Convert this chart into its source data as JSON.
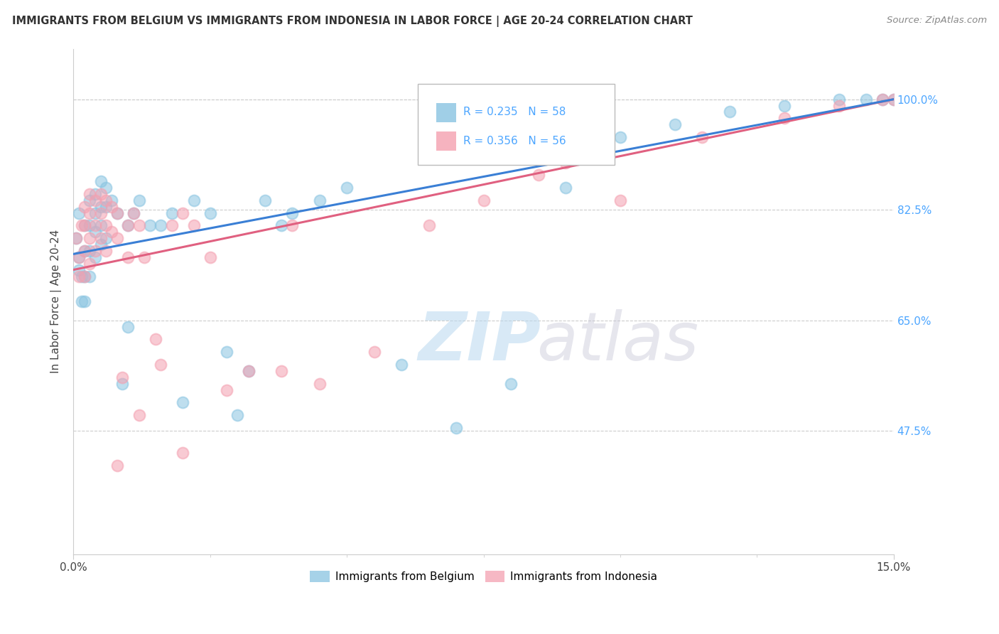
{
  "title": "IMMIGRANTS FROM BELGIUM VS IMMIGRANTS FROM INDONESIA IN LABOR FORCE | AGE 20-24 CORRELATION CHART",
  "source": "Source: ZipAtlas.com",
  "ylabel": "In Labor Force | Age 20-24",
  "xlim": [
    0.0,
    0.15
  ],
  "ylim": [
    0.28,
    1.08
  ],
  "xtick_positions": [
    0.0,
    0.15
  ],
  "xticklabels": [
    "0.0%",
    "15.0%"
  ],
  "ytick_positions": [
    0.475,
    0.65,
    0.825,
    1.0
  ],
  "yticklabels": [
    "47.5%",
    "65.0%",
    "82.5%",
    "100.0%"
  ],
  "legend_labels": [
    "Immigrants from Belgium",
    "Immigrants from Indonesia"
  ],
  "belgium_R": 0.235,
  "belgium_N": 58,
  "indonesia_R": 0.356,
  "indonesia_N": 56,
  "belgium_color": "#89c4e1",
  "indonesia_color": "#f4a0b0",
  "belgium_x": [
    0.0005,
    0.001,
    0.0015,
    0.001,
    0.001,
    0.0015,
    0.002,
    0.002,
    0.002,
    0.002,
    0.003,
    0.003,
    0.003,
    0.003,
    0.004,
    0.004,
    0.004,
    0.004,
    0.005,
    0.005,
    0.005,
    0.005,
    0.006,
    0.006,
    0.006,
    0.007,
    0.008,
    0.009,
    0.01,
    0.01,
    0.011,
    0.012,
    0.014,
    0.016,
    0.018,
    0.02,
    0.022,
    0.025,
    0.028,
    0.03,
    0.032,
    0.035,
    0.038,
    0.04,
    0.045,
    0.05,
    0.06,
    0.07,
    0.08,
    0.09,
    0.1,
    0.11,
    0.12,
    0.13,
    0.14,
    0.145,
    0.148,
    0.15
  ],
  "belgium_y": [
    0.78,
    0.73,
    0.68,
    0.82,
    0.75,
    0.72,
    0.8,
    0.76,
    0.72,
    0.68,
    0.84,
    0.8,
    0.76,
    0.72,
    0.85,
    0.82,
    0.79,
    0.75,
    0.87,
    0.83,
    0.8,
    0.77,
    0.86,
    0.83,
    0.78,
    0.84,
    0.82,
    0.55,
    0.8,
    0.64,
    0.82,
    0.84,
    0.8,
    0.8,
    0.82,
    0.52,
    0.84,
    0.82,
    0.6,
    0.5,
    0.57,
    0.84,
    0.8,
    0.82,
    0.84,
    0.86,
    0.58,
    0.48,
    0.55,
    0.86,
    0.94,
    0.96,
    0.98,
    0.99,
    1.0,
    1.0,
    1.0,
    1.0
  ],
  "indonesia_x": [
    0.0005,
    0.001,
    0.001,
    0.0015,
    0.002,
    0.002,
    0.002,
    0.002,
    0.003,
    0.003,
    0.003,
    0.003,
    0.004,
    0.004,
    0.004,
    0.005,
    0.005,
    0.005,
    0.006,
    0.006,
    0.006,
    0.007,
    0.007,
    0.008,
    0.008,
    0.009,
    0.01,
    0.01,
    0.011,
    0.012,
    0.013,
    0.015,
    0.016,
    0.018,
    0.02,
    0.022,
    0.025,
    0.028,
    0.032,
    0.038,
    0.04,
    0.045,
    0.055,
    0.065,
    0.075,
    0.085,
    0.09,
    0.1,
    0.115,
    0.13,
    0.14,
    0.148,
    0.15,
    0.008,
    0.012,
    0.02
  ],
  "indonesia_y": [
    0.78,
    0.75,
    0.72,
    0.8,
    0.83,
    0.8,
    0.76,
    0.72,
    0.85,
    0.82,
    0.78,
    0.74,
    0.84,
    0.8,
    0.76,
    0.85,
    0.82,
    0.78,
    0.84,
    0.8,
    0.76,
    0.83,
    0.79,
    0.82,
    0.78,
    0.56,
    0.8,
    0.75,
    0.82,
    0.8,
    0.75,
    0.62,
    0.58,
    0.8,
    0.82,
    0.8,
    0.75,
    0.54,
    0.57,
    0.57,
    0.8,
    0.55,
    0.6,
    0.8,
    0.84,
    0.88,
    0.9,
    0.84,
    0.94,
    0.97,
    0.99,
    1.0,
    1.0,
    0.42,
    0.5,
    0.44
  ]
}
